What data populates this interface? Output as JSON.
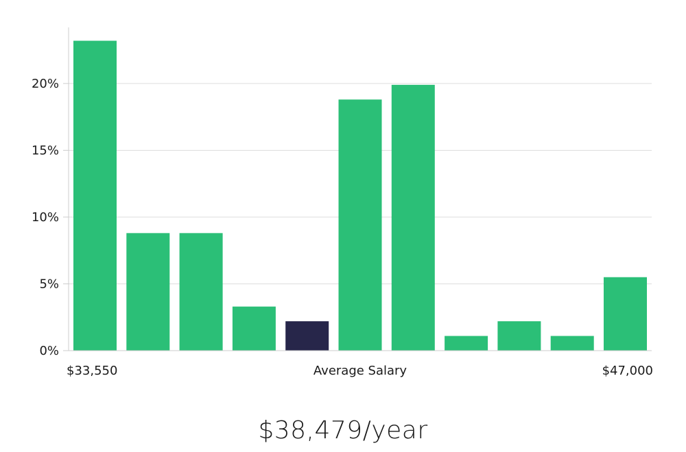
{
  "chart_data": {
    "type": "bar",
    "title": "",
    "xlabel": "Average Salary",
    "ylabel": "",
    "ylim": [
      0,
      24.2
    ],
    "yticks": [
      "0%",
      "5%",
      "10%",
      "15%",
      "20%"
    ],
    "ytick_values": [
      0,
      5,
      10,
      15,
      20
    ],
    "grid": true,
    "legend": "none",
    "x_range_labels": {
      "min": "$33,550",
      "max": "$47,000"
    },
    "values": [
      23.2,
      8.8,
      8.8,
      3.3,
      2.2,
      18.8,
      19.9,
      1.1,
      2.2,
      1.1,
      5.5
    ],
    "highlight_index": 4,
    "colors": {
      "bar": "#2bbf77",
      "highlight": "#27264a",
      "grid": "#dddddd",
      "axis": "#cccccc"
    }
  },
  "footer": {
    "salary": "$38,479/year"
  }
}
